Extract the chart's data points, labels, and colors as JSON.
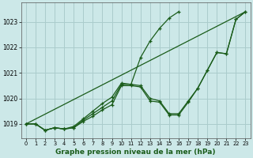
{
  "xlabel": "Graphe pression niveau de la mer (hPa)",
  "bg_color": "#cce8e8",
  "grid_color": "#aacccc",
  "line_color": "#1a5c1a",
  "xlim": [
    -0.5,
    23.5
  ],
  "ylim": [
    1018.45,
    1023.75
  ],
  "yticks": [
    1019,
    1020,
    1021,
    1022,
    1023
  ],
  "xticks": [
    0,
    1,
    2,
    3,
    4,
    5,
    6,
    7,
    8,
    9,
    10,
    11,
    12,
    13,
    14,
    15,
    16,
    17,
    18,
    19,
    20,
    21,
    22,
    23
  ],
  "line_main": [
    1019.0,
    1019.0,
    1018.75,
    1018.85,
    1018.8,
    1018.85,
    1019.1,
    1019.3,
    1019.55,
    1019.75,
    1020.5,
    1020.5,
    1020.45,
    1019.9,
    1019.85,
    1019.35,
    1019.35,
    1019.85,
    1020.4,
    1021.1,
    1021.8,
    1021.75,
    1023.1,
    1023.4
  ],
  "line2": [
    1019.0,
    1019.0,
    1018.75,
    1018.85,
    1018.8,
    1018.85,
    1019.15,
    1019.4,
    1019.65,
    1019.9,
    1020.55,
    1020.55,
    1020.5,
    1020.0,
    1019.9,
    1019.4,
    1019.4,
    1019.9,
    1020.4,
    1021.1,
    1021.8,
    1021.75,
    1023.1,
    1023.4
  ],
  "line3": [
    1019.0,
    1019.0,
    1018.75,
    1018.85,
    1018.8,
    1018.9,
    1019.2,
    1019.5,
    1019.8,
    1020.05,
    1020.6,
    1020.55,
    1021.6,
    1022.25,
    1022.75,
    1023.15,
    1023.4,
    null,
    null,
    null,
    null,
    null,
    null,
    null
  ],
  "line_diag": [
    [
      0,
      23
    ],
    [
      1019.0,
      1023.4
    ]
  ]
}
